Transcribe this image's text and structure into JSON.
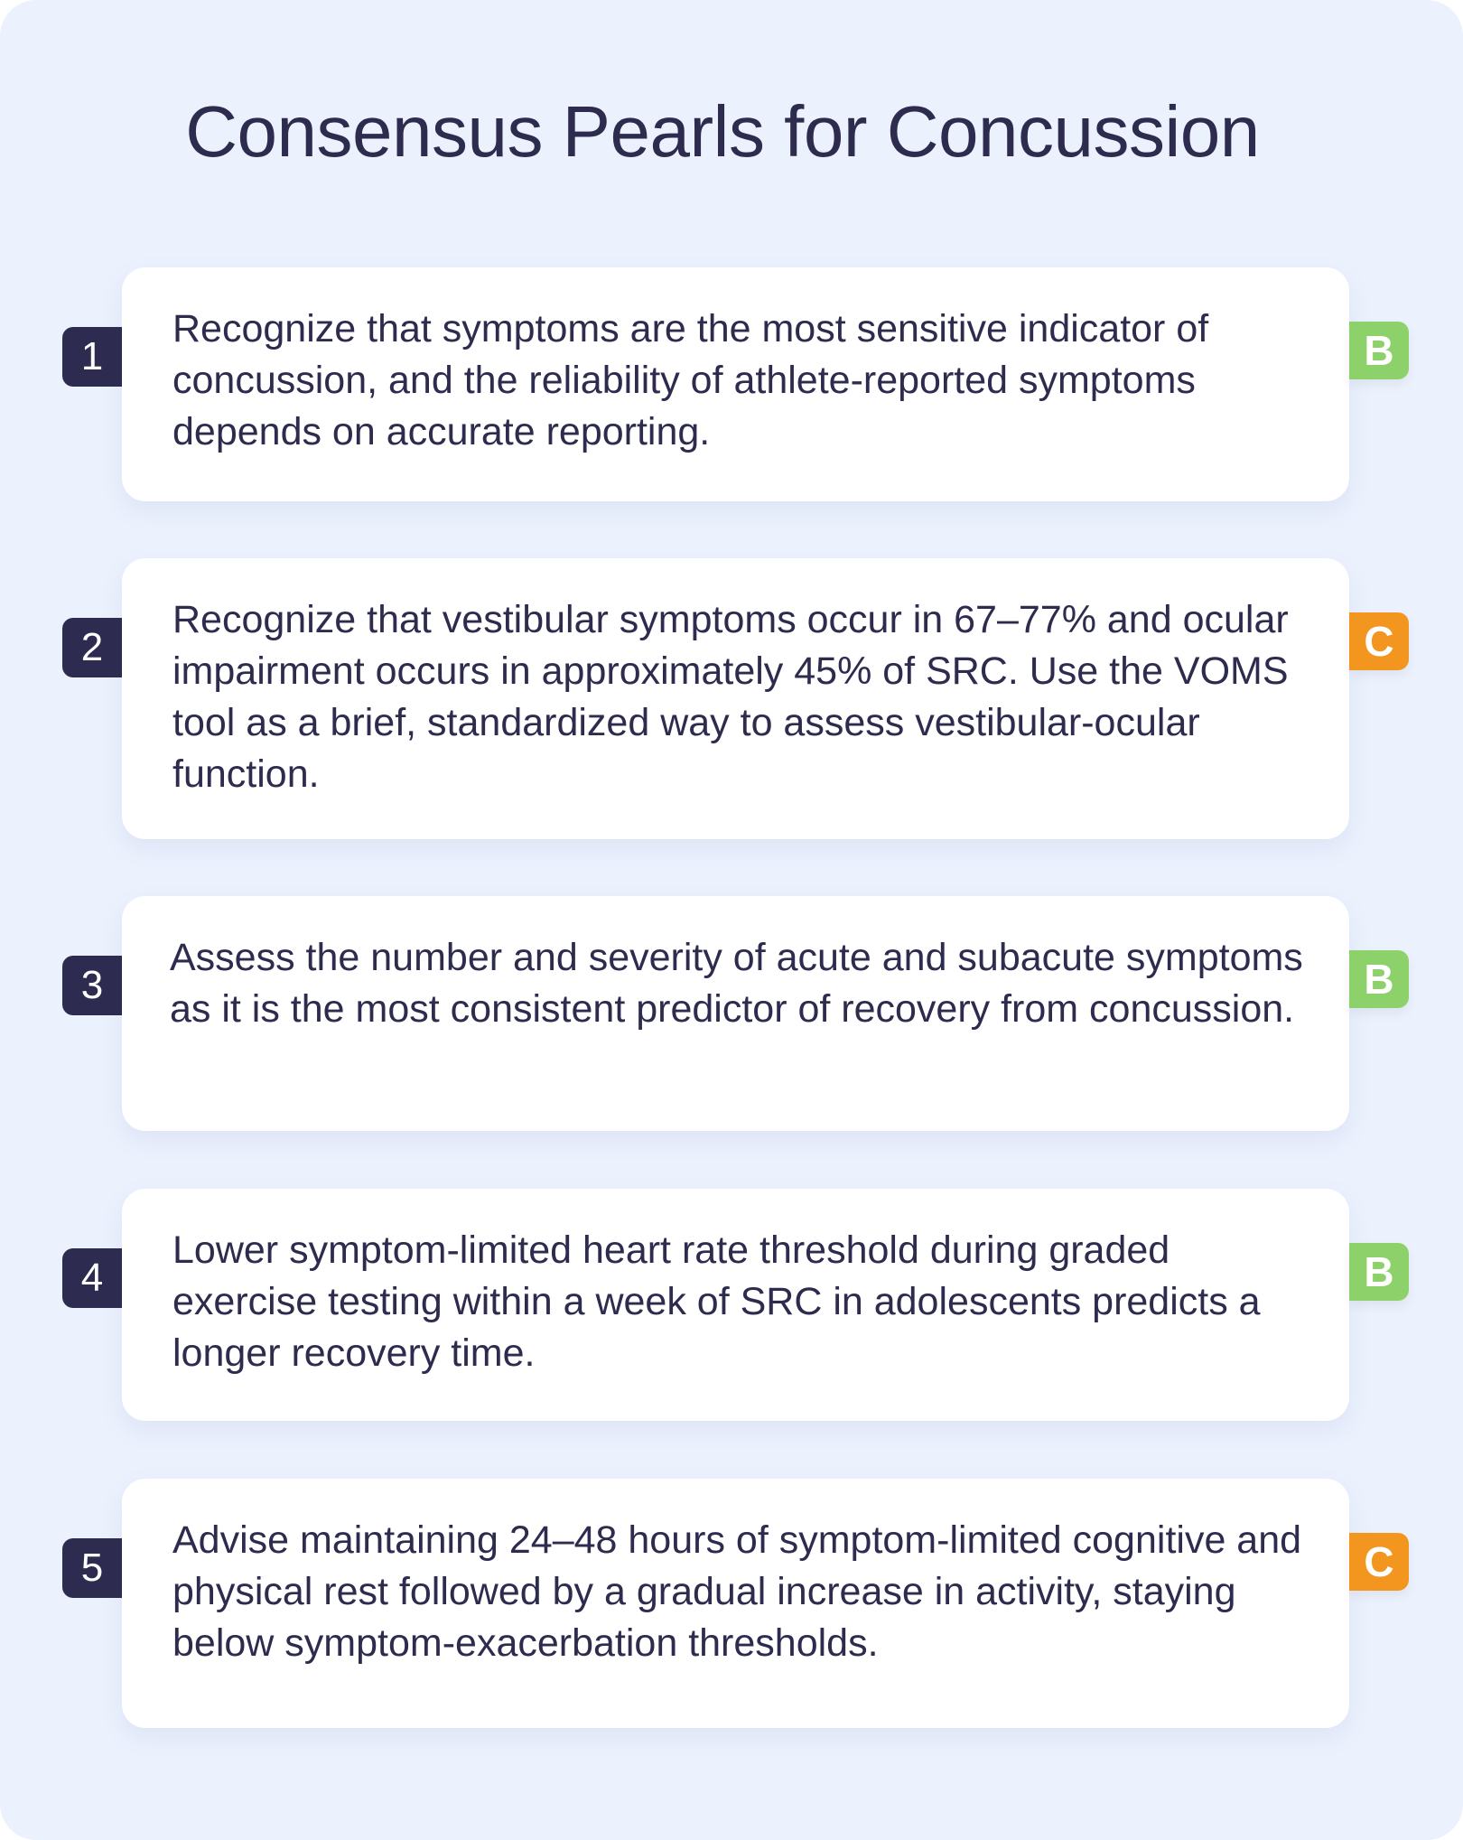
{
  "title": "Consensus Pearls for Concussion",
  "colors": {
    "background": "#EBF1FD",
    "number_badge": "#2E2B50",
    "grade_B": "#8DD16A",
    "grade_C": "#F3961F",
    "text": "#2D2B4E"
  },
  "pearls": [
    {
      "number": "1",
      "text": "Recognize that symptoms are the most sensitive indicator of concussion, and the reliability of athlete-reported symptoms depends on accurate reporting.",
      "grade": "B"
    },
    {
      "number": "2",
      "text": "Recognize that vestibular symptoms occur in 67–77% and ocular impairment occurs in approximately 45% of SRC. Use the VOMS tool as a brief, standardized way to assess vestibular-ocular function.",
      "grade": "C"
    },
    {
      "number": "3",
      "text": "Assess the number and severity of acute and subacute symptoms as it is the most consistent predictor of recovery from concussion.",
      "grade": "B"
    },
    {
      "number": "4",
      "text": "Lower symptom-limited heart rate threshold during graded exercise testing within a week of SRC in adolescents predicts a longer recovery time.",
      "grade": "B"
    },
    {
      "number": "5",
      "text": "Advise maintaining 24–48 hours of symptom-limited cognitive and physical rest followed by a gradual increase in activity, staying below symptom-exacerbation thresholds.",
      "grade": "C"
    }
  ]
}
